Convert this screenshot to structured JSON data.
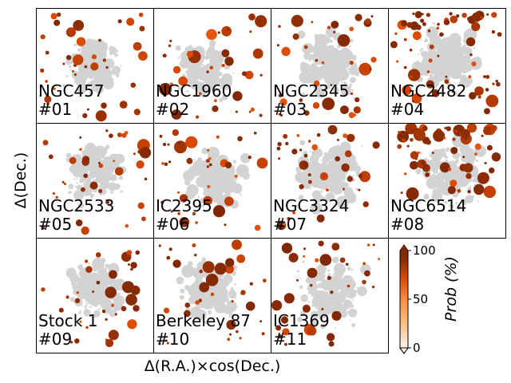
{
  "chart_data": {
    "type": "scatter",
    "xlabel": "Δ(R.A.)×cos(Dec.)",
    "ylabel": "Δ(Dec.)",
    "colormap": [
      "#fff5eb",
      "#fdbe85",
      "#fd8d3c",
      "#d94801",
      "#8c2d04",
      "#7f2704"
    ],
    "field_color": "#d3d3d3",
    "colorbar": {
      "label": "Prob (%)",
      "ticks": [
        "0",
        "50",
        "100"
      ],
      "range": [
        0,
        100
      ]
    },
    "panels": [
      {
        "name": "NGC457",
        "index": "#01"
      },
      {
        "name": "NGC1960",
        "index": "#02"
      },
      {
        "name": "NGC2345",
        "index": "#03"
      },
      {
        "name": "NGC2482",
        "index": "#04"
      },
      {
        "name": "NGC2533",
        "index": "#05"
      },
      {
        "name": "IC2395",
        "index": "#06"
      },
      {
        "name": "NGC3324",
        "index": "#07"
      },
      {
        "name": "NGC6514",
        "index": "#08"
      },
      {
        "name": "Stock 1",
        "index": "#09"
      },
      {
        "name": "Berkeley 87",
        "index": "#10"
      },
      {
        "name": "IC1369",
        "index": "#11"
      }
    ]
  }
}
